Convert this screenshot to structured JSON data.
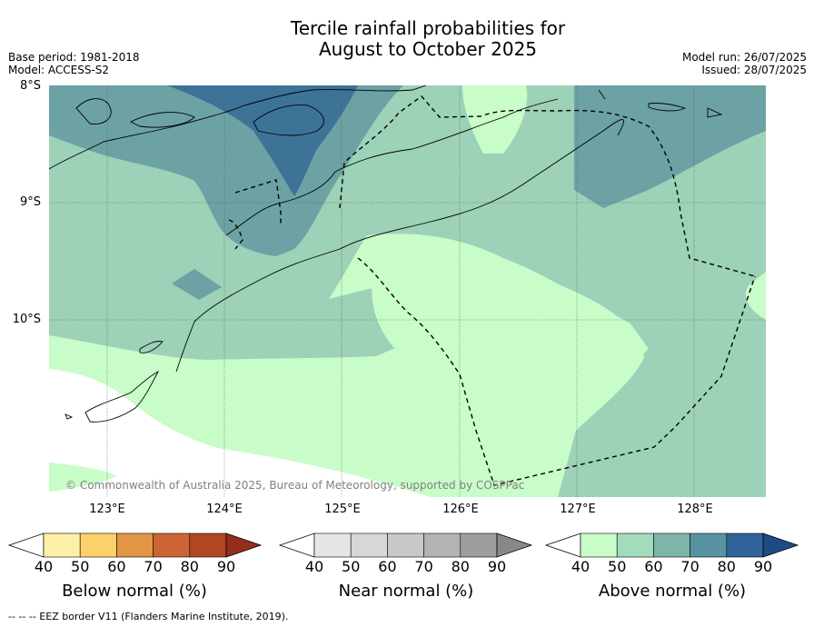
{
  "header": {
    "title_line1": "Tercile rainfall probabilities for",
    "title_line2": "August to October 2025",
    "base_period": "Base period: 1981-2018",
    "model": "Model: ACCESS-S2",
    "model_run": "Model run: 26/07/2025",
    "issued": "Issued: 28/07/2025"
  },
  "axes": {
    "lat_labels": [
      "8°S",
      "9°S",
      "10°S"
    ],
    "lon_labels": [
      "123°E",
      "124°E",
      "125°E",
      "126°E",
      "127°E",
      "128°E"
    ]
  },
  "copyright": "© Commonwealth of Australia 2025, Bureau of Meteorology, supported by COSPPac",
  "legend": {
    "ticks": [
      "40",
      "50",
      "60",
      "70",
      "80",
      "90"
    ],
    "below": {
      "title": "Below normal (%)",
      "colors": [
        "#ffffff",
        "#fff0a8",
        "#fed06a",
        "#e19545",
        "#cc6533",
        "#b24624",
        "#932f1c"
      ]
    },
    "near": {
      "title": "Near normal (%)",
      "colors": [
        "#ffffff",
        "#e6e6e6",
        "#d7d7d7",
        "#c8c8c8",
        "#b3b3b3",
        "#9e9e9e",
        "#888888"
      ]
    },
    "above": {
      "title": "Above normal (%)",
      "colors": [
        "#ffffff",
        "#c8fcc8",
        "#a2dcbc",
        "#7fb4aa",
        "#5992a0",
        "#30639a",
        "#1d4b86"
      ]
    }
  },
  "footer": "--  --  -- EEZ border V11 (Flanders Marine Institute, 2019).",
  "map_colors": {
    "light_green": "#c8fcc8",
    "mid_green": "#9dd1b8",
    "teal": "#6ca2a4",
    "blue": "#3e7398",
    "white": "#ffffff"
  }
}
